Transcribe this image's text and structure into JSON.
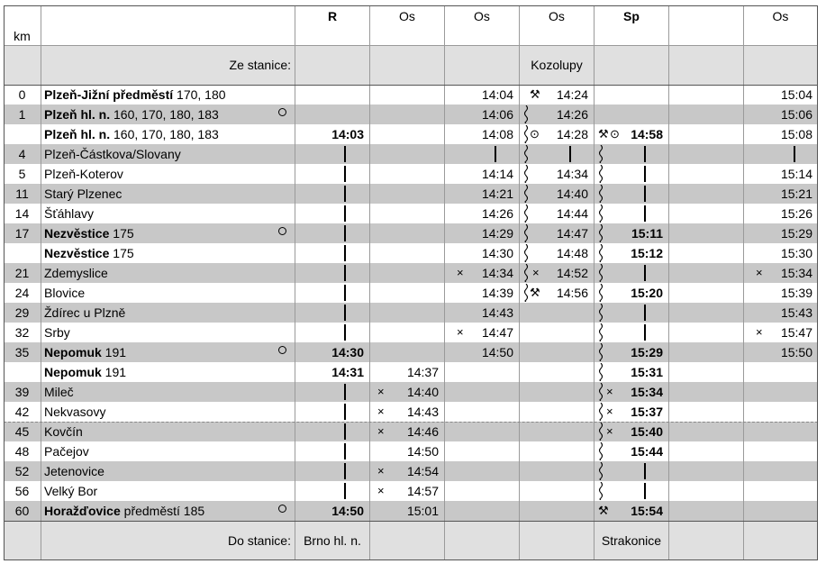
{
  "header": {
    "km_label": "km",
    "trains": [
      "R",
      "Os",
      "Os",
      "Os",
      "Sp",
      "",
      "Os"
    ],
    "from_label": "Ze stanice:",
    "from_station_kozolupy": "Kozolupy",
    "to_label": "Do stanice:",
    "to_station_r": "Brno hl. n.",
    "to_station_sp": "Strakonice"
  },
  "symbols": {
    "request_stop": "×",
    "hammer": "⚒",
    "circle_dot": "⊙",
    "connection": "○"
  },
  "rows": [
    {
      "km": "0",
      "name": "Plzeň-Jižní předměstí",
      "lines": " 170, 180",
      "shade": false
    },
    {
      "km": "1",
      "name": "Plzeň hl. n.",
      "lines": " 160, 170, 180, 183",
      "shade": true,
      "circle": true
    },
    {
      "km": "",
      "name": "Plzeň hl. n.",
      "lines": " 160, 170, 180, 183",
      "shade": false
    },
    {
      "km": "4",
      "name": "",
      "lines": "Plzeň-Částkova/Slovany",
      "shade": true
    },
    {
      "km": "5",
      "name": "",
      "lines": "Plzeň-Koterov",
      "shade": false
    },
    {
      "km": "11",
      "name": "",
      "lines": "Starý Plzenec",
      "shade": true
    },
    {
      "km": "14",
      "name": "",
      "lines": "Šťáhlavy",
      "shade": false
    },
    {
      "km": "17",
      "name": "Nezvěstice",
      "lines": " 175",
      "shade": true,
      "circle": true
    },
    {
      "km": "",
      "name": "Nezvěstice",
      "lines": " 175",
      "shade": false
    },
    {
      "km": "21",
      "name": "",
      "lines": "Zdemyslice",
      "shade": true
    },
    {
      "km": "24",
      "name": "",
      "lines": "Blovice",
      "shade": false
    },
    {
      "km": "29",
      "name": "",
      "lines": "Ždírec u Plzně",
      "shade": true
    },
    {
      "km": "32",
      "name": "",
      "lines": "Srby",
      "shade": false
    },
    {
      "km": "35",
      "name": "Nepomuk",
      "lines": " 191",
      "shade": true,
      "circle": true
    },
    {
      "km": "",
      "name": "Nepomuk",
      "lines": " 191",
      "shade": false
    },
    {
      "km": "39",
      "name": "",
      "lines": "Mileč",
      "shade": true
    },
    {
      "km": "42",
      "name": "",
      "lines": "Nekvasovy",
      "shade": false
    },
    {
      "km": "45",
      "name": "",
      "lines": "Kovčín",
      "shade": true
    },
    {
      "km": "48",
      "name": "",
      "lines": "Pačejov",
      "shade": false
    },
    {
      "km": "52",
      "name": "",
      "lines": "Jetenovice",
      "shade": true
    },
    {
      "km": "56",
      "name": "",
      "lines": "Velký Bor",
      "shade": false
    },
    {
      "km": "60",
      "name": "Horažďovice",
      "lines": " předměstí 185",
      "shade": true,
      "circle": true
    }
  ],
  "times": {
    "R": [
      "",
      "",
      "14:03",
      "",
      "",
      "",
      "",
      "",
      "",
      "",
      "",
      "",
      "",
      "14:30",
      "14:31",
      "",
      "",
      "",
      "",
      "",
      "",
      "14:50"
    ],
    "Os1": [
      "",
      "",
      "",
      "",
      "",
      "",
      "",
      "",
      "",
      "",
      "",
      "",
      "",
      "",
      "14:37",
      "14:40",
      "14:43",
      "14:46",
      "14:50",
      "14:54",
      "14:57",
      "15:01"
    ],
    "Os2": [
      "14:04",
      "14:06",
      "14:08",
      "",
      "14:14",
      "14:21",
      "14:26",
      "14:29",
      "14:30",
      "14:34",
      "14:39",
      "14:43",
      "14:47",
      "14:50",
      "",
      "",
      "",
      "",
      "",
      "",
      "",
      ""
    ],
    "Os3": [
      "14:24",
      "14:26",
      "14:28",
      "",
      "14:34",
      "14:40",
      "14:44",
      "14:47",
      "14:48",
      "14:52",
      "14:56",
      "",
      "",
      "",
      "",
      "",
      "",
      "",
      "",
      "",
      "",
      ""
    ],
    "Sp": [
      "",
      "",
      "14:58",
      "",
      "",
      "",
      "",
      "15:11",
      "15:12",
      "",
      "15:20",
      "",
      "",
      "15:29",
      "15:31",
      "15:34",
      "15:37",
      "15:40",
      "15:44",
      "",
      "",
      "15:54"
    ],
    "Os4": [
      "15:04",
      "15:06",
      "15:08",
      "",
      "15:14",
      "15:21",
      "15:26",
      "15:29",
      "15:30",
      "15:34",
      "15:39",
      "15:43",
      "15:47",
      "15:50",
      "",
      "",
      "",
      "",
      "",
      "",
      "",
      ""
    ]
  }
}
